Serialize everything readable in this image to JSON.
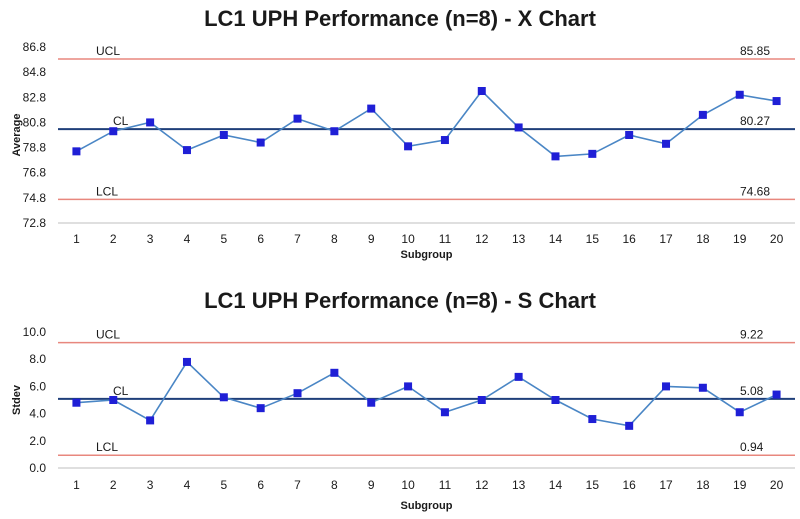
{
  "chart_data": [
    {
      "type": "line",
      "title": "LC1 UPH Performance (n=8) - X Chart",
      "xlabel": "Subgroup",
      "ylabel": "Average",
      "ylim": [
        72.8,
        86.8
      ],
      "yticks": [
        "72.8",
        "74.8",
        "76.8",
        "78.8",
        "80.8",
        "82.8",
        "84.8",
        "86.8"
      ],
      "categories": [
        "1",
        "2",
        "3",
        "4",
        "5",
        "6",
        "7",
        "8",
        "9",
        "10",
        "11",
        "12",
        "13",
        "14",
        "15",
        "16",
        "17",
        "18",
        "19",
        "20"
      ],
      "series": [
        {
          "values": [
            78.5,
            80.1,
            80.8,
            78.6,
            79.8,
            79.2,
            81.1,
            80.1,
            81.9,
            78.9,
            79.4,
            83.3,
            80.4,
            78.1,
            78.3,
            79.8,
            79.1,
            81.4,
            83.0,
            82.5
          ]
        }
      ],
      "limits": {
        "ucl": {
          "label": "UCL",
          "value": 85.85,
          "value_text": "85.85"
        },
        "cl": {
          "label": "CL",
          "value": 80.27,
          "value_text": "80.27"
        },
        "lcl": {
          "label": "LCL",
          "value": 74.68,
          "value_text": "74.68"
        }
      },
      "grid": false,
      "colors": {
        "series": "#4a86c5",
        "marker": "#1f1fd6",
        "limit": "#e8877e",
        "center": "#1f3f7a"
      }
    },
    {
      "type": "line",
      "title": "LC1 UPH Performance (n=8) - S Chart",
      "xlabel": "Subgroup",
      "ylabel": "Stdev",
      "ylim": [
        0,
        10
      ],
      "yticks": [
        "0.0",
        "2.0",
        "4.0",
        "6.0",
        "8.0",
        "10.0"
      ],
      "categories": [
        "1",
        "2",
        "3",
        "4",
        "5",
        "6",
        "7",
        "8",
        "9",
        "10",
        "11",
        "12",
        "13",
        "14",
        "15",
        "16",
        "17",
        "18",
        "19",
        "20"
      ],
      "series": [
        {
          "values": [
            4.8,
            5.0,
            3.5,
            7.8,
            5.2,
            4.4,
            5.5,
            7.0,
            4.8,
            6.0,
            4.1,
            5.0,
            6.7,
            5.0,
            3.6,
            3.1,
            6.0,
            5.9,
            4.1,
            5.4
          ]
        }
      ],
      "limits": {
        "ucl": {
          "label": "UCL",
          "value": 9.22,
          "value_text": "9.22"
        },
        "cl": {
          "label": "CL",
          "value": 5.08,
          "value_text": "5.08"
        },
        "lcl": {
          "label": "LCL",
          "value": 0.94,
          "value_text": "0.94"
        }
      },
      "grid": false,
      "colors": {
        "series": "#4a86c5",
        "marker": "#1f1fd6",
        "limit": "#e8877e",
        "center": "#1f3f7a"
      }
    }
  ]
}
